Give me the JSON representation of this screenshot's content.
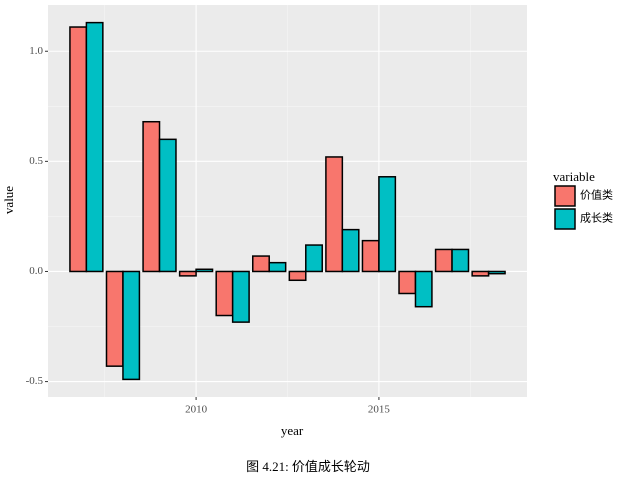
{
  "chart_data": {
    "type": "bar",
    "caption": "图 4.21: 价值成长轮动",
    "x_label": "year",
    "y_label": "value",
    "legend_title": "variable",
    "x": [
      2007,
      2008,
      2009,
      2010,
      2011,
      2012,
      2013,
      2014,
      2015,
      2016,
      2017,
      2018
    ],
    "series": [
      {
        "name": "价值类",
        "color": "#f8766d",
        "values": [
          1.11,
          -0.43,
          0.68,
          -0.02,
          -0.2,
          0.07,
          -0.04,
          0.52,
          0.14,
          -0.1,
          0.1,
          -0.02
        ]
      },
      {
        "name": "成长类",
        "color": "#00bfc4",
        "values": [
          1.13,
          -0.49,
          0.6,
          0.01,
          -0.23,
          0.04,
          0.12,
          0.19,
          0.43,
          -0.16,
          0.1,
          -0.01
        ]
      }
    ],
    "xlim": [
      2005.95,
      2019.05
    ],
    "xticks": [
      2010,
      2015
    ],
    "ylim": [
      -0.57,
      1.21
    ],
    "yticks": [
      {
        "value": 1.0,
        "label": "1.0"
      },
      0.5,
      {
        "value": 0,
        "label": "0.0"
      },
      -0.5
    ],
    "grid": true
  }
}
